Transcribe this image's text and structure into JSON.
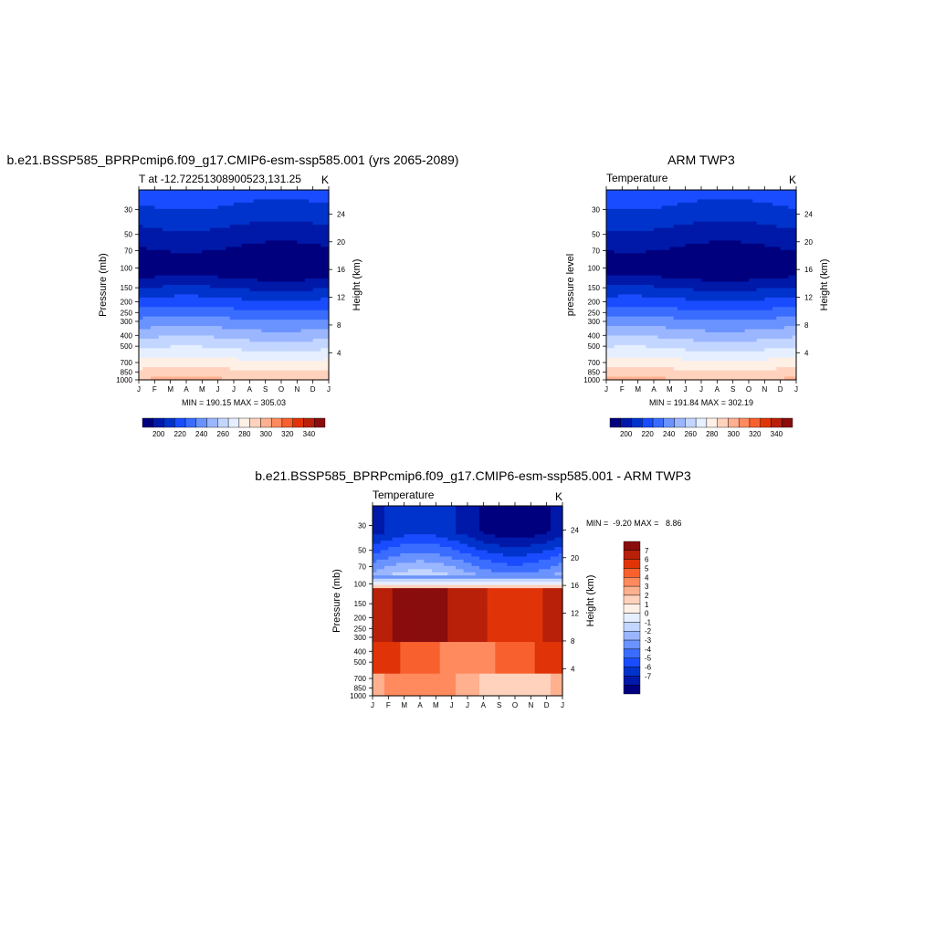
{
  "months": [
    "J",
    "F",
    "M",
    "A",
    "M",
    "J",
    "J",
    "A",
    "S",
    "O",
    "N",
    "D",
    "J"
  ],
  "pressure_ticks": [
    30,
    50,
    70,
    100,
    150,
    200,
    250,
    300,
    400,
    500,
    700,
    850,
    1000
  ],
  "height_ticks": [
    4,
    8,
    12,
    16,
    20,
    24
  ],
  "palette_temp": [
    "#00007f",
    "#0019a8",
    "#0033cc",
    "#1a4cff",
    "#3a6dff",
    "#6a93ff",
    "#9ab6ff",
    "#c3d6ff",
    "#e6efff",
    "#fff0e6",
    "#ffd2bd",
    "#ffb08f",
    "#ff8a5e",
    "#f8602d",
    "#e03408",
    "#b8200a",
    "#8a0d0d"
  ],
  "palette_diff": [
    "#00007f",
    "#0019a8",
    "#0033cc",
    "#1a4cff",
    "#3a6dff",
    "#6a93ff",
    "#9ab6ff",
    "#c3d6ff",
    "#e6efff",
    "#fff0e6",
    "#ffd2bd",
    "#ffb08f",
    "#ff8a5e",
    "#f8602d",
    "#e03408",
    "#b8200a",
    "#8a0d0d"
  ],
  "chart_data": [
    {
      "type": "heatmap",
      "title": "b.e21.BSSP585_BPRPcmip6.f09_g17.CMIP6-esm-ssp585.001 (yrs 2065-2089)",
      "left_label": "T at -12.72251308900523,131.25",
      "right_label": "K",
      "ylabel": "Pressure (mb)",
      "ylabel_right": "Height (km)",
      "minmax": "MIN = 190.15 MAX = 305.03",
      "colorbar_labels": [
        "200",
        "220",
        "240",
        "260",
        "280",
        "300",
        "320",
        "340"
      ]
    },
    {
      "type": "heatmap",
      "title": "ARM TWP3",
      "left_label": "Temperature",
      "right_label": "K",
      "ylabel": "pressure level",
      "ylabel_right": "Height (km)",
      "minmax": "MIN = 191.84 MAX = 302.19",
      "colorbar_labels": [
        "200",
        "220",
        "240",
        "260",
        "280",
        "300",
        "320",
        "340"
      ]
    },
    {
      "type": "heatmap",
      "title": "b.e21.BSSP585_BPRPcmip6.f09_g17.CMIP6-esm-ssp585.001 - ARM TWP3",
      "left_label": "Temperature",
      "right_label": "K",
      "ylabel": "Pressure (mb)",
      "ylabel_right": "Height (km)",
      "minmax": "MIN =  -9.20 MAX =   8.86",
      "colorbar_labels": [
        "7",
        "6",
        "5",
        "4",
        "3",
        "2",
        "1",
        "0",
        "-1",
        "-2",
        "-3",
        "-4",
        "-5",
        "-6",
        "-7"
      ]
    }
  ]
}
